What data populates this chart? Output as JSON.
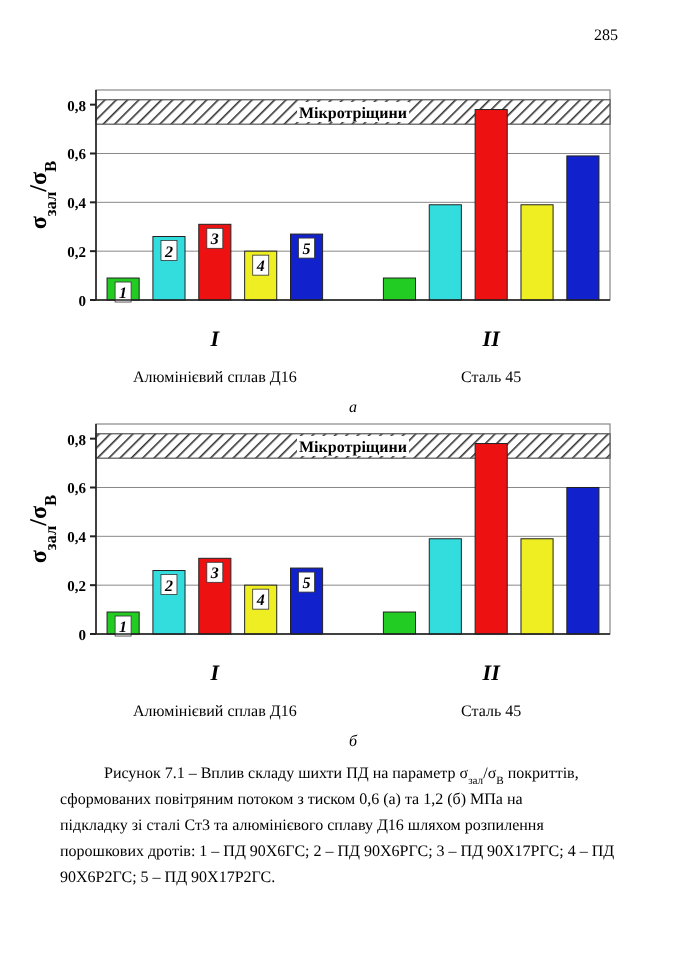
{
  "chart_data": [
    {
      "type": "bar",
      "xlabel": "а",
      "ylabel": "σ$_{зал}$/σ$_{В}$",
      "categories": [
        "I",
        "II"
      ],
      "series": [
        {
          "name": "1",
          "color": "#22cc22",
          "values": [
            0.09,
            0.09
          ]
        },
        {
          "name": "2",
          "color": "#33dddd",
          "values": [
            0.26,
            0.39
          ]
        },
        {
          "name": "3",
          "color": "#ee1111",
          "values": [
            0.31,
            0.78
          ]
        },
        {
          "name": "4",
          "color": "#eeee22",
          "values": [
            0.2,
            0.39
          ]
        },
        {
          "name": "5",
          "color": "#1122cc",
          "values": [
            0.27,
            0.59
          ]
        }
      ],
      "ylim": [
        0,
        0.86
      ],
      "yticks": [
        0,
        {
          "value": 0.2,
          "label": "0,2"
        },
        {
          "value": 0.4,
          "label": "0,4"
        },
        {
          "value": 0.6,
          "label": "0,6"
        },
        {
          "value": 0.8,
          "label": "0,8"
        }
      ],
      "grid": "y",
      "bands": [
        {
          "axis": "y",
          "from": 0.72,
          "to": 0.82,
          "label": "Мікротріщини",
          "color": "#555555"
        }
      ],
      "annotations": [
        "Алюмінієвий сплав Д16",
        "Сталь 45",
        "285"
      ]
    },
    {
      "type": "bar",
      "xlabel": "б",
      "ylabel": "σ$_{зал}$/σ$_{В}$",
      "categories": [
        "I",
        "II"
      ],
      "series": [
        {
          "name": "1",
          "color": "#22cc22",
          "values": [
            0.09,
            0.09
          ]
        },
        {
          "name": "2",
          "color": "#33dddd",
          "values": [
            0.26,
            0.39
          ]
        },
        {
          "name": "3",
          "color": "#ee1111",
          "values": [
            0.31,
            0.78
          ]
        },
        {
          "name": "4",
          "color": "#eeee22",
          "values": [
            0.2,
            0.39
          ]
        },
        {
          "name": "5",
          "color": "#1122cc",
          "values": [
            0.27,
            0.6
          ]
        }
      ],
      "ylim": [
        0,
        0.86
      ],
      "yticks": [
        0,
        {
          "value": 0.2,
          "label": "0,2"
        },
        {
          "value": 0.4,
          "label": "0,4"
        },
        {
          "value": 0.6,
          "label": "0,6"
        },
        {
          "value": 0.8,
          "label": "0,8"
        }
      ],
      "grid": "y",
      "bands": [
        {
          "axis": "y",
          "from": 0.72,
          "to": 0.82,
          "label": "Мікротріщини",
          "color": "#555555"
        }
      ],
      "annotations": [
        "Алюмінієвий сплав Д16",
        "Сталь 45",
        "Рисунок 7.1 – Вплив складу шихти ПД на параметр σ$_{зал}$/σ$_{В}$ покриттів, сформованих повітряним потоком з тиском 0,6 (а) та 1,2 (б) МПа на підкладку зі сталі Ст3 та алюмінієвого сплаву Д16 шляхом розпилення порошкових дротів: 1 – ПД 90Х6ГС; 2 – ПД 90Х6РГС; 3 – ПД 90Х17РГС; 4 – ПД 90Х6Р2ГС; 5 – ПД 90Х17Р2ГС."
      ]
    }
  ]
}
